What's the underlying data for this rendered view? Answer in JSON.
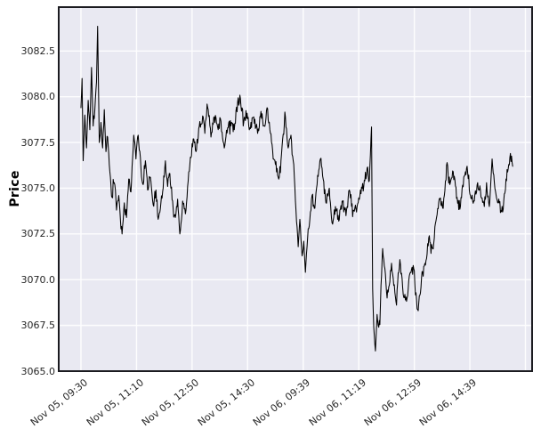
{
  "figure": {
    "bg_color": "#ffffff"
  },
  "chart_data": {
    "type": "line",
    "title": "",
    "xlabel": "",
    "ylabel": "Price",
    "legend": "none",
    "grid": "on",
    "axes_bg_color": "#e9e9f2",
    "grid_color": "#ffffff",
    "line_color": "#000000",
    "spine_color": "#1b1b20",
    "tick_label_color": "#262626",
    "xlim": [
      -40,
      812
    ],
    "ylim": [
      3065.0,
      3084.9
    ],
    "y_ticks": [
      3065.0,
      3067.5,
      3070.0,
      3072.5,
      3075.0,
      3077.5,
      3080.0,
      3082.5
    ],
    "x_ticks": [
      {
        "pos": 0,
        "label": "Nov 05, 09:30"
      },
      {
        "pos": 100,
        "label": "Nov 05, 11:10"
      },
      {
        "pos": 200,
        "label": "Nov 05, 12:50"
      },
      {
        "pos": 300,
        "label": "Nov 05, 14:30"
      },
      {
        "pos": 400,
        "label": "Nov 06, 09:39"
      },
      {
        "pos": 500,
        "label": "Nov 06, 11:19"
      },
      {
        "pos": 600,
        "label": "Nov 06, 12:59"
      },
      {
        "pos": 700,
        "label": "Nov 06, 14:39"
      },
      {
        "pos": 800,
        "label": ""
      }
    ],
    "x_unit": "minute bar index (two trading sessions, Nov 05 and Nov 06)",
    "noise_amplitude": 0.28,
    "seed": 11,
    "anchors": {
      "x": [
        0,
        2,
        4,
        7,
        10,
        13,
        16,
        19,
        22,
        25,
        28,
        30,
        33,
        36,
        39,
        42,
        45,
        48,
        52,
        56,
        60,
        64,
        68,
        71,
        74,
        78,
        82,
        86,
        90,
        95,
        99,
        103,
        108,
        112,
        116,
        120,
        125,
        130,
        135,
        139,
        143,
        147,
        152,
        156,
        160,
        165,
        170,
        174,
        178,
        183,
        188,
        193,
        196,
        202,
        207,
        213,
        220,
        223,
        227,
        234,
        240,
        247,
        251,
        258,
        264,
        271,
        276,
        282,
        287,
        293,
        299,
        304,
        311,
        318,
        324,
        330,
        335,
        340,
        347,
        356,
        362,
        368,
        373,
        378,
        383,
        387,
        391,
        394,
        398,
        401,
        404,
        408,
        412,
        416,
        420,
        425,
        431,
        436,
        441,
        447,
        452,
        458,
        464,
        470,
        477,
        483,
        490,
        496,
        503,
        509,
        515,
        519,
        523,
        525,
        527,
        530,
        533,
        536,
        539,
        543,
        548,
        551,
        555,
        559,
        567,
        574,
        580,
        587,
        593,
        599,
        607,
        613,
        620,
        627,
        633,
        640,
        646,
        652,
        659,
        664,
        670,
        677,
        683,
        689,
        695,
        701,
        708,
        714,
        719,
        726,
        730,
        735,
        740,
        745,
        751,
        759,
        765,
        770,
        773,
        777
      ],
      "y": [
        3079.4,
        3081.0,
        3076.5,
        3079.0,
        3077.2,
        3079.8,
        3078.2,
        3081.6,
        3078.4,
        3079.3,
        3080.8,
        3083.85,
        3077.5,
        3078.6,
        3077.2,
        3079.3,
        3077.0,
        3077.8,
        3075.9,
        3074.5,
        3075.3,
        3073.8,
        3074.6,
        3073.3,
        3072.5,
        3074.2,
        3073.4,
        3075.5,
        3074.8,
        3077.9,
        3076.6,
        3077.9,
        3076.1,
        3075.2,
        3076.5,
        3074.9,
        3075.6,
        3074.1,
        3074.9,
        3073.3,
        3073.9,
        3074.8,
        3076.5,
        3075.1,
        3075.8,
        3074.3,
        3073.4,
        3074.4,
        3072.5,
        3074.3,
        3073.6,
        3075.4,
        3076.3,
        3077.7,
        3077.0,
        3078.4,
        3078.9,
        3078.0,
        3079.6,
        3077.8,
        3078.9,
        3078.2,
        3078.8,
        3077.2,
        3078.3,
        3078.6,
        3078.2,
        3079.7,
        3079.9,
        3078.6,
        3079.1,
        3078.3,
        3078.9,
        3078.0,
        3079.2,
        3078.4,
        3079.4,
        3078.2,
        3076.6,
        3075.5,
        3077.3,
        3078.9,
        3077.2,
        3077.9,
        3076.3,
        3073.8,
        3071.8,
        3073.3,
        3071.3,
        3072.1,
        3070.4,
        3072.3,
        3073.3,
        3074.6,
        3073.9,
        3075.2,
        3076.6,
        3075.5,
        3074.2,
        3075.0,
        3073.1,
        3074.0,
        3073.2,
        3074.3,
        3073.5,
        3074.9,
        3073.8,
        3073.7,
        3074.9,
        3075.1,
        3076.1,
        3075.4,
        3078.35,
        3069.5,
        3067.4,
        3066.1,
        3068.1,
        3067.4,
        3068.6,
        3071.7,
        3070.3,
        3069.0,
        3069.7,
        3070.9,
        3068.8,
        3071.1,
        3069.2,
        3069.0,
        3070.4,
        3070.6,
        3068.3,
        3070.1,
        3070.8,
        3072.4,
        3071.7,
        3073.4,
        3074.4,
        3073.9,
        3076.4,
        3075.2,
        3075.9,
        3074.5,
        3074.0,
        3075.6,
        3076.2,
        3074.6,
        3074.3,
        3075.3,
        3074.9,
        3074.0,
        3075.3,
        3074.0,
        3076.6,
        3075.0,
        3074.2,
        3073.7,
        3075.5,
        3076.3,
        3076.9,
        3076.2
      ]
    }
  }
}
